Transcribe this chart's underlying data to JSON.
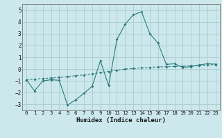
{
  "xlabel": "Humidex (Indice chaleur)",
  "bg_color": "#cce8ec",
  "grid_color": "#aacccc",
  "line_color": "#2a7a7a",
  "x_line1": [
    0,
    1,
    2,
    3,
    4,
    5,
    6,
    7,
    8,
    9,
    10,
    11,
    12,
    13,
    14,
    15,
    16,
    17,
    18,
    19,
    20,
    21,
    22,
    23
  ],
  "y_line1": [
    -0.9,
    -1.85,
    -1.0,
    -0.9,
    -0.95,
    -3.05,
    -2.6,
    -2.05,
    -1.45,
    0.7,
    -1.4,
    2.5,
    3.8,
    4.6,
    4.85,
    3.0,
    2.2,
    0.4,
    0.45,
    0.15,
    0.2,
    0.35,
    0.45,
    0.42
  ],
  "x_line2": [
    0,
    1,
    2,
    3,
    4,
    5,
    6,
    7,
    8,
    9,
    10,
    11,
    12,
    13,
    14,
    15,
    16,
    17,
    18,
    19,
    20,
    21,
    22,
    23
  ],
  "y_line2": [
    -0.9,
    -0.85,
    -0.8,
    -0.75,
    -0.7,
    -0.65,
    -0.55,
    -0.5,
    -0.4,
    -0.3,
    -0.2,
    -0.1,
    0.0,
    0.05,
    0.1,
    0.15,
    0.18,
    0.2,
    0.22,
    0.25,
    0.28,
    0.3,
    0.35,
    0.38
  ],
  "ylim": [
    -3.5,
    5.5
  ],
  "xlim": [
    -0.5,
    23.5
  ],
  "yticks": [
    -3,
    -2,
    -1,
    0,
    1,
    2,
    3,
    4,
    5
  ],
  "xticks": [
    0,
    1,
    2,
    3,
    4,
    5,
    6,
    7,
    8,
    9,
    10,
    11,
    12,
    13,
    14,
    15,
    16,
    17,
    18,
    19,
    20,
    21,
    22,
    23
  ]
}
